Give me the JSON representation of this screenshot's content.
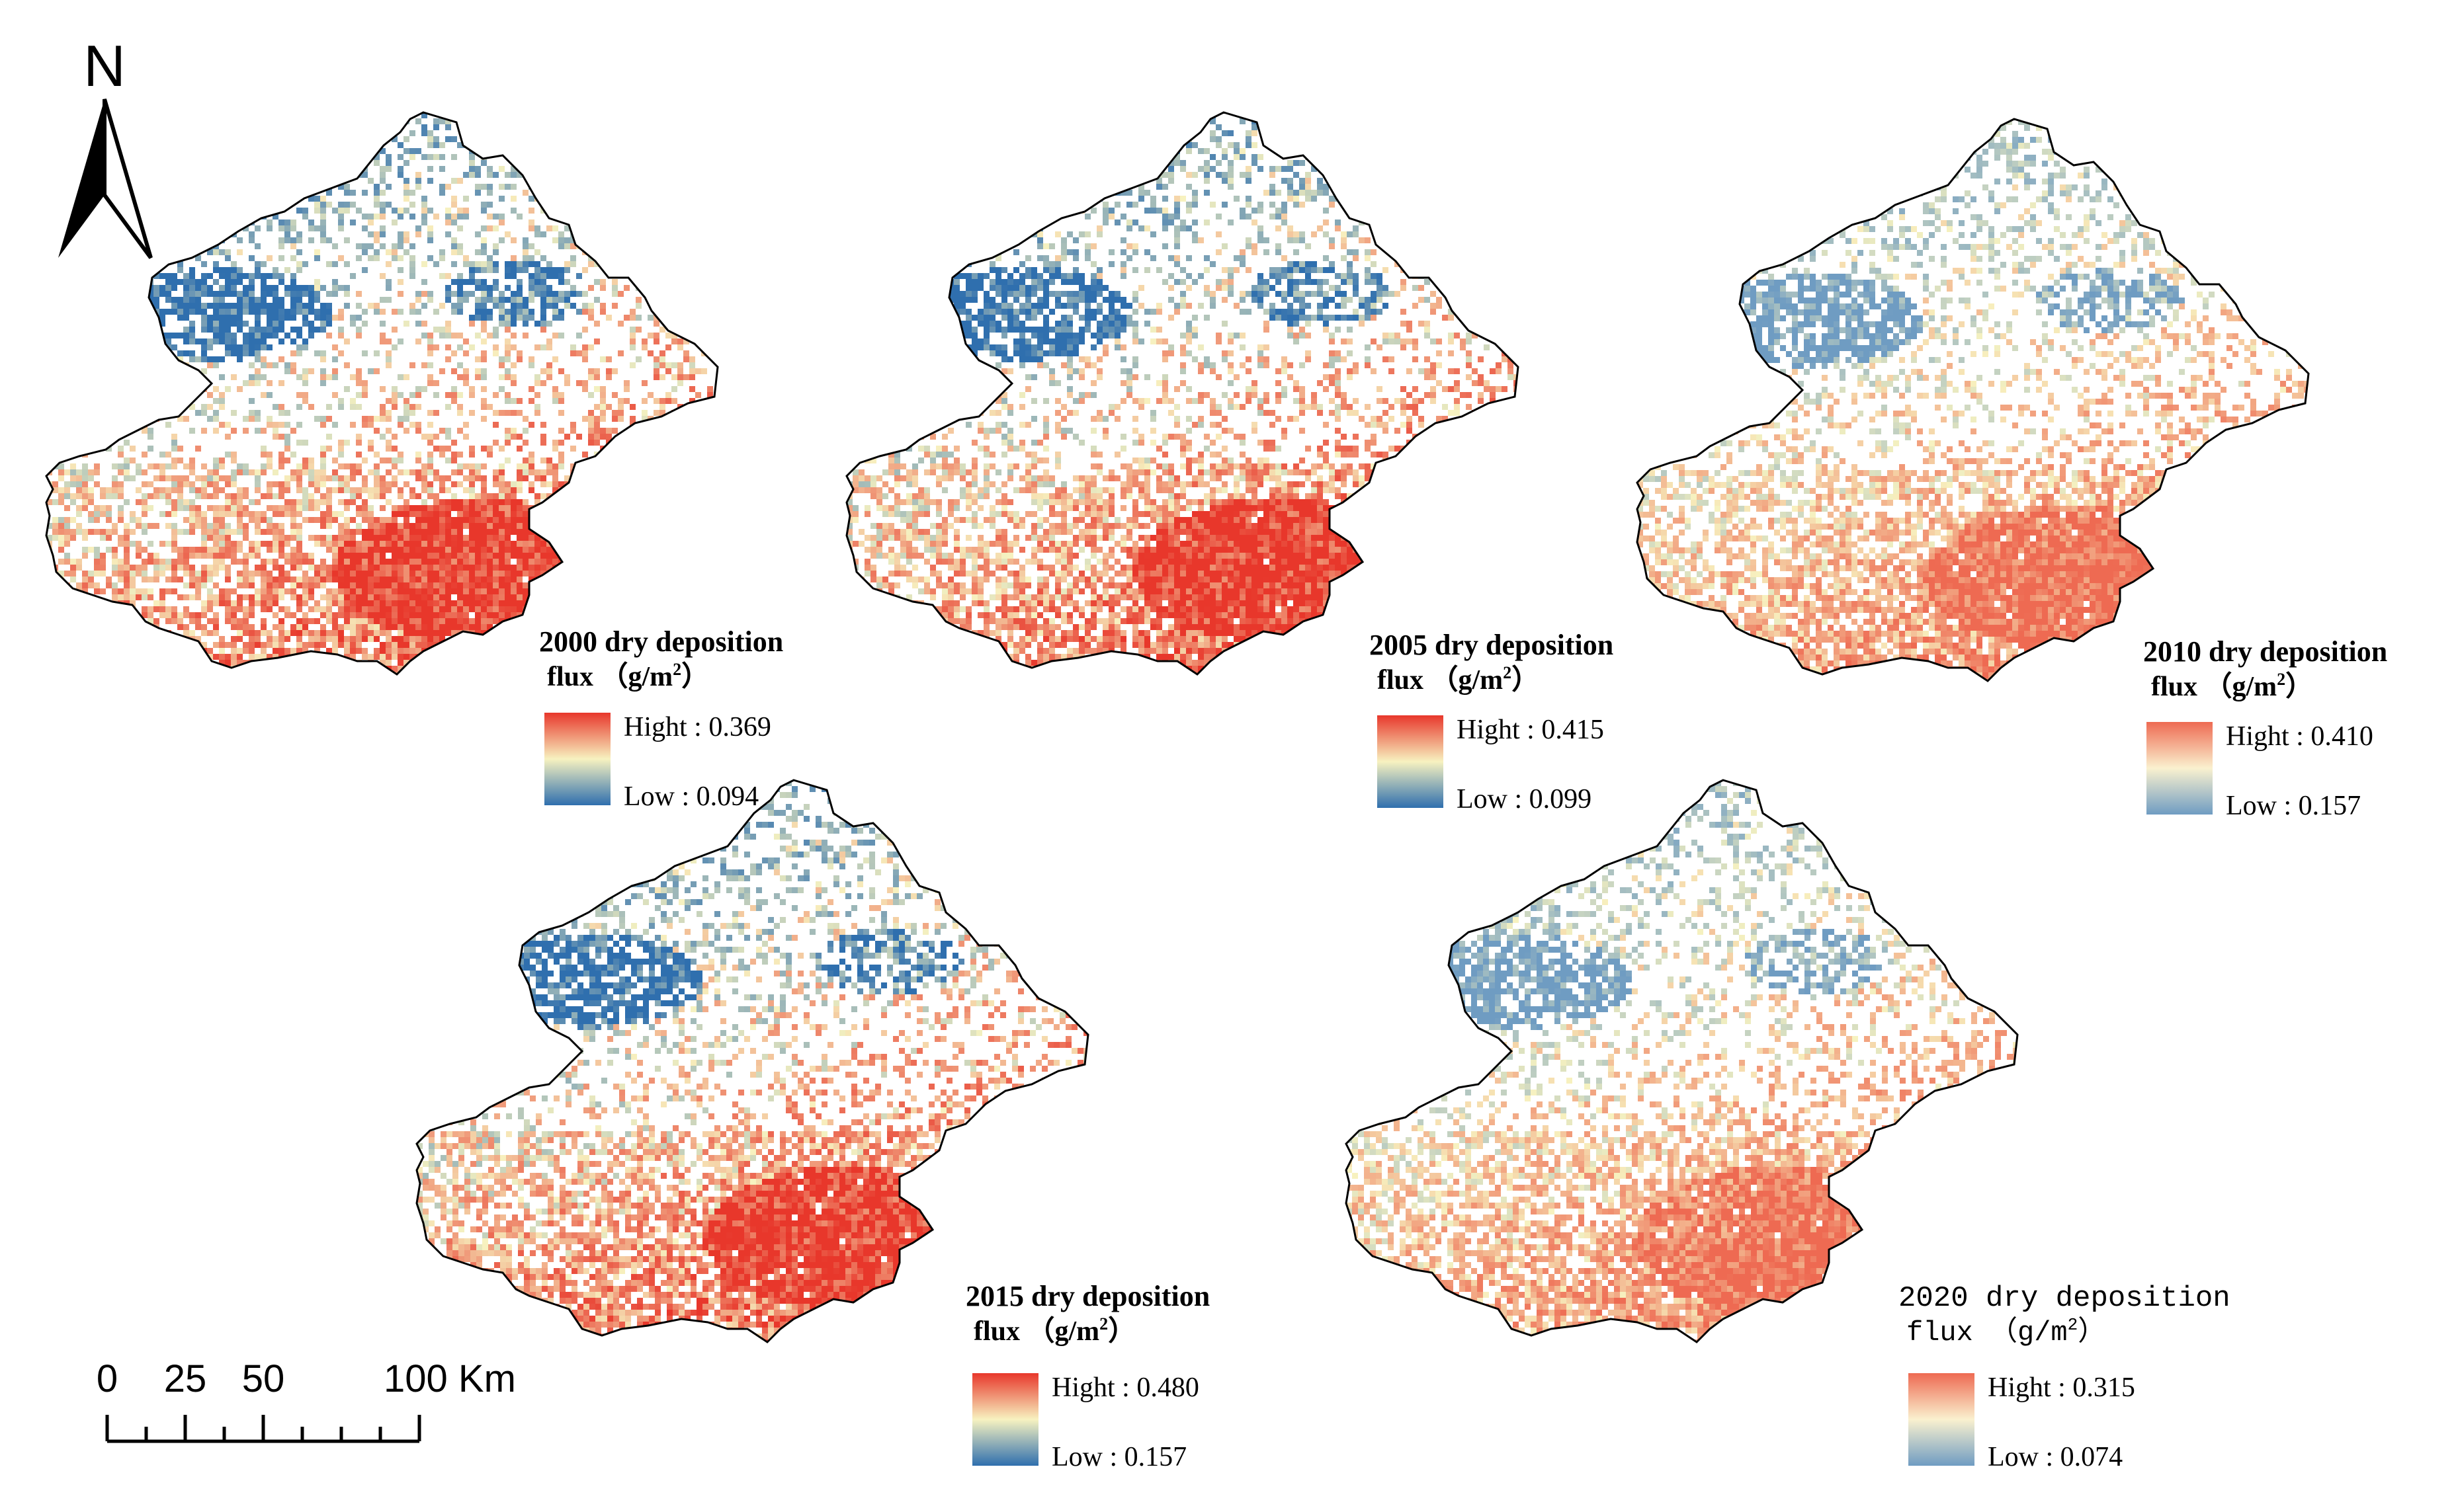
{
  "north_arrow": {
    "label": "N"
  },
  "scale_bar": {
    "ticks": [
      "0",
      "25",
      "50",
      "100 Km"
    ]
  },
  "unit_superscript": "2",
  "panels": [
    {
      "id": "p2000",
      "title_line1": "2000 dry deposition",
      "title_line2": "flux （g/m",
      "title_close": "）",
      "high_label": "Hight : 0.369",
      "low_label": "Low : 0.094",
      "style": "bold",
      "low_color": "#2f6fae",
      "high_color": "#e8372b"
    },
    {
      "id": "p2005",
      "title_line1": "2005 dry deposition",
      "title_line2": "flux （g/m",
      "title_close": "）",
      "high_label": "Hight : 0.415",
      "low_label": "Low : 0.099",
      "style": "bold",
      "low_color": "#2f6fae",
      "high_color": "#e8372b"
    },
    {
      "id": "p2010",
      "title_line1": "2010 dry deposition",
      "title_line2": "flux （g/m",
      "title_close": "）",
      "high_label": "Hight : 0.410",
      "low_label": "Low : 0.157",
      "style": "bold",
      "low_color": "#6f9cc2",
      "high_color": "#ee6a52"
    },
    {
      "id": "p2015",
      "title_line1": "2015 dry deposition",
      "title_line2": "flux （g/m",
      "title_close": "）",
      "high_label": "Hight : 0.480",
      "low_label": "Low : 0.157",
      "style": "bold",
      "low_color": "#2f6fae",
      "high_color": "#e8372b"
    },
    {
      "id": "p2020",
      "title_line1": "2020 dry deposition",
      "title_line2": "flux （g/m",
      "title_close": "）",
      "high_label": "Hight : 0.315",
      "low_label": "Low : 0.074",
      "style": "mono",
      "low_color": "#6f9cc2",
      "high_color": "#ee6a52"
    }
  ],
  "colors": {
    "ramp_low": "#2f6fae",
    "ramp_mid": "#f7f2c0",
    "ramp_high": "#e8372b",
    "outline": "#000000"
  }
}
